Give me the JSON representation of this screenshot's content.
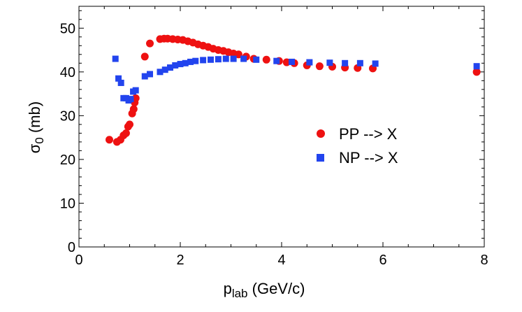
{
  "chart_data": {
    "type": "scatter",
    "title": "",
    "xlabel": {
      "main": "p",
      "sub": "lab",
      "rest": " (GeV/c)"
    },
    "ylabel": {
      "main": "σ",
      "sub": "0",
      "rest": " (mb)"
    },
    "xlim": [
      0,
      8
    ],
    "ylim": [
      0,
      55
    ],
    "xticks": [
      0,
      2,
      4,
      6,
      8
    ],
    "yticks": [
      0,
      10,
      20,
      30,
      40,
      50
    ],
    "legend_position": "right-center",
    "series": [
      {
        "name": "PP --> X",
        "marker": "circle",
        "color": "#ee1111",
        "x": [
          0.6,
          0.75,
          0.82,
          0.88,
          0.93,
          0.97,
          1.0,
          1.05,
          1.08,
          1.1,
          1.12,
          1.3,
          1.4,
          1.6,
          1.68,
          1.75,
          1.85,
          1.95,
          2.05,
          2.15,
          2.25,
          2.35,
          2.45,
          2.55,
          2.65,
          2.75,
          2.85,
          2.95,
          3.05,
          3.15,
          3.3,
          3.45,
          3.7,
          3.95,
          4.1,
          4.25,
          4.5,
          4.75,
          5.0,
          5.25,
          5.5,
          5.8,
          7.85
        ],
        "y": [
          24.5,
          24.0,
          24.5,
          25.5,
          26.0,
          27.5,
          28.0,
          30.5,
          31.5,
          33.0,
          34.0,
          43.5,
          46.5,
          47.5,
          47.6,
          47.6,
          47.5,
          47.4,
          47.3,
          47.0,
          46.7,
          46.3,
          46.0,
          45.7,
          45.3,
          45.0,
          44.8,
          44.5,
          44.2,
          44.0,
          43.5,
          43.0,
          42.8,
          42.5,
          42.2,
          42.0,
          41.5,
          41.3,
          41.2,
          41.0,
          40.9,
          40.8,
          40.0
        ]
      },
      {
        "name": "NP --> X",
        "marker": "square",
        "color": "#2244ee",
        "x": [
          0.72,
          0.78,
          0.83,
          0.88,
          0.93,
          0.98,
          1.02,
          1.07,
          1.12,
          1.3,
          1.4,
          1.6,
          1.7,
          1.8,
          1.9,
          2.0,
          2.1,
          2.2,
          2.3,
          2.45,
          2.6,
          2.75,
          2.9,
          3.05,
          3.25,
          3.5,
          3.9,
          4.2,
          4.55,
          4.95,
          5.25,
          5.55,
          5.85,
          7.85
        ],
        "y": [
          43.0,
          38.5,
          37.5,
          34.0,
          34.0,
          33.5,
          33.8,
          35.5,
          35.8,
          39.0,
          39.5,
          40.0,
          40.5,
          41.0,
          41.5,
          41.8,
          42.0,
          42.3,
          42.5,
          42.7,
          42.8,
          42.9,
          43.0,
          43.0,
          43.0,
          42.8,
          42.5,
          42.3,
          42.2,
          42.1,
          42.0,
          42.0,
          41.9,
          41.3
        ]
      }
    ]
  }
}
